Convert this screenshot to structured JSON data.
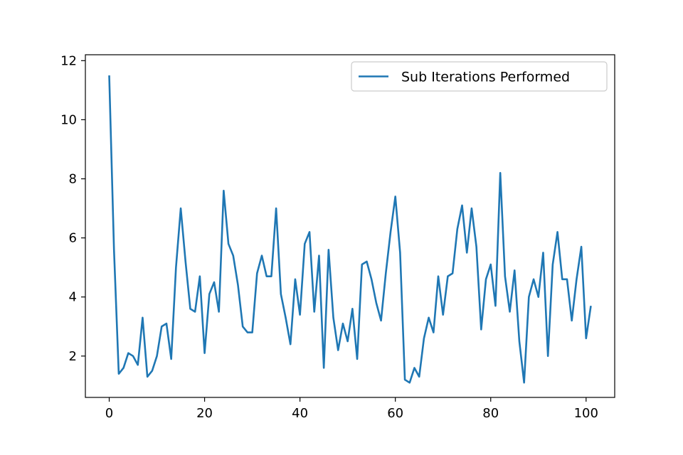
{
  "chart_data": {
    "type": "line",
    "title": "",
    "xlabel": "",
    "ylabel": "",
    "xlim": [
      -5,
      106
    ],
    "ylim": [
      0.6,
      12.2
    ],
    "xticks": [
      0,
      20,
      40,
      60,
      80,
      100
    ],
    "yticks": [
      2,
      4,
      6,
      8,
      10,
      12
    ],
    "grid": false,
    "legend_position": "top-right",
    "series": [
      {
        "name": "Sub Iterations Performed",
        "color": "#1f77b4",
        "x": [
          0,
          1,
          2,
          3,
          4,
          5,
          6,
          7,
          8,
          9,
          10,
          11,
          12,
          13,
          14,
          15,
          16,
          17,
          18,
          19,
          20,
          21,
          22,
          23,
          24,
          25,
          26,
          27,
          28,
          29,
          30,
          31,
          32,
          33,
          34,
          35,
          36,
          37,
          38,
          39,
          40,
          41,
          42,
          43,
          44,
          45,
          46,
          47,
          48,
          49,
          50,
          51,
          52,
          53,
          54,
          55,
          56,
          57,
          58,
          59,
          60,
          61,
          62,
          63,
          64,
          65,
          66,
          67,
          68,
          69,
          70,
          71,
          72,
          73,
          74,
          75,
          76,
          77,
          78,
          79,
          80,
          81,
          82,
          83,
          84,
          85,
          86,
          87,
          88,
          89,
          90,
          91,
          92,
          93,
          94,
          95,
          96,
          97,
          98,
          99,
          100,
          101
        ],
        "values": [
          11.5,
          5.6,
          1.4,
          1.6,
          2.1,
          2.0,
          1.7,
          3.3,
          1.3,
          1.5,
          2.0,
          3.0,
          3.1,
          1.9,
          5.0,
          7.0,
          5.2,
          3.6,
          3.5,
          4.7,
          2.1,
          4.1,
          4.5,
          3.5,
          7.6,
          5.8,
          5.4,
          4.4,
          3.0,
          2.8,
          2.8,
          4.8,
          5.4,
          4.7,
          4.7,
          7.0,
          4.1,
          3.3,
          2.4,
          4.6,
          3.4,
          5.8,
          6.2,
          3.5,
          5.4,
          1.6,
          5.6,
          3.3,
          2.2,
          3.1,
          2.5,
          3.6,
          1.9,
          5.1,
          5.2,
          4.6,
          3.8,
          3.2,
          4.8,
          6.2,
          7.4,
          5.5,
          1.2,
          1.1,
          1.6,
          1.3,
          2.6,
          3.3,
          2.8,
          4.7,
          3.4,
          4.7,
          4.8,
          6.3,
          7.1,
          5.5,
          7.0,
          5.7,
          2.9,
          4.6,
          5.1,
          3.7,
          8.2,
          4.7,
          3.5,
          4.9,
          2.5,
          1.1,
          4.0,
          4.6,
          4.0,
          5.5,
          2.0,
          5.1,
          6.2,
          4.6,
          4.6,
          3.2,
          4.6,
          5.7,
          2.6,
          3.7
        ]
      }
    ]
  }
}
